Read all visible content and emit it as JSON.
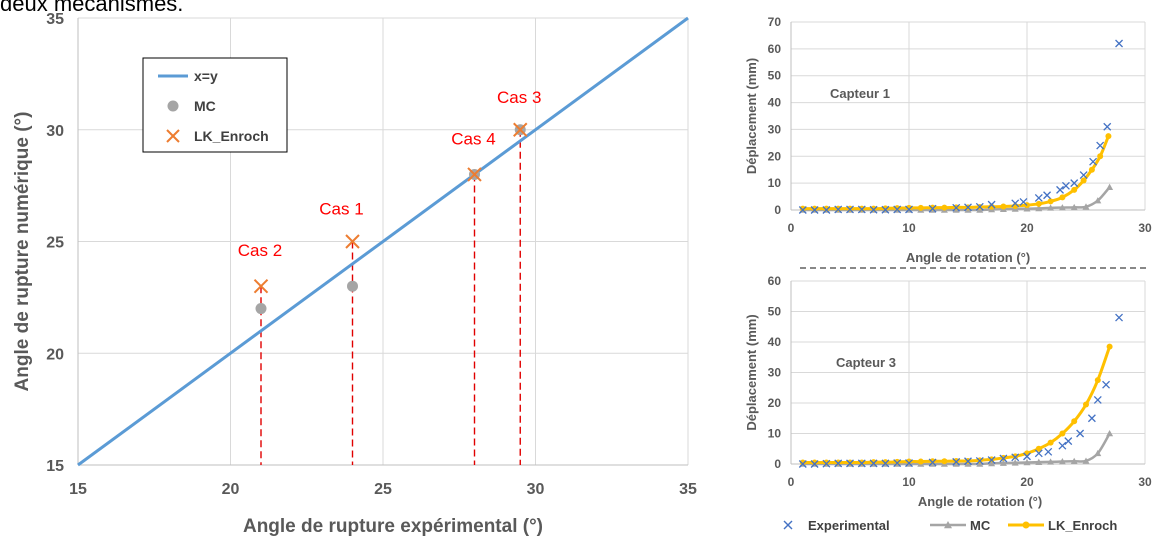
{
  "header_text": "deux mécanismes.",
  "colors": {
    "line": "#5b9bd5",
    "mc": "#a5a5a5",
    "lk": "#ed7d31",
    "guide": "#e00000",
    "experimental": "#4472c4",
    "lk_small": "#ffc000",
    "axis_text": "#595959",
    "grid": "#d9d9d9"
  },
  "chart_data": [
    {
      "type": "scatter",
      "title": "",
      "xlabel": "Angle de rupture expérimental (°)",
      "ylabel": "Angle de rupture numérique (°)",
      "xlim": [
        15,
        35
      ],
      "ylim": [
        15,
        35
      ],
      "xticks": [
        15,
        20,
        25,
        30,
        35
      ],
      "yticks": [
        15,
        20,
        25,
        30,
        35
      ],
      "grid": true,
      "legend_position": "top-left",
      "series": [
        {
          "name": "x=y",
          "kind": "line",
          "x": [
            15,
            35
          ],
          "y": [
            15,
            35
          ]
        },
        {
          "name": "MC",
          "kind": "marker-circle",
          "x": [
            21,
            24,
            28,
            29.5
          ],
          "y": [
            22,
            23,
            28,
            30
          ]
        },
        {
          "name": "LK_Enroch",
          "kind": "marker-x",
          "x": [
            21,
            24,
            28,
            29.5
          ],
          "y": [
            23,
            25,
            28,
            30
          ]
        }
      ],
      "annotations": [
        {
          "text": "Cas 2",
          "x": 21,
          "y": 23
        },
        {
          "text": "Cas 1",
          "x": 24,
          "y": 25
        },
        {
          "text": "Cas 4",
          "x": 28,
          "y": 28
        },
        {
          "text": "Cas 3",
          "x": 29.5,
          "y": 30
        }
      ],
      "guides": [
        {
          "x": 21,
          "y": 23
        },
        {
          "x": 24,
          "y": 25
        },
        {
          "x": 28,
          "y": 28
        },
        {
          "x": 29.5,
          "y": 30
        }
      ]
    },
    {
      "type": "line",
      "title": "",
      "annotation": "Capteur 1",
      "xlabel": "Angle de rotation (°)",
      "ylabel": "Déplacement (mm)",
      "xlim": [
        0,
        30
      ],
      "ylim": [
        0,
        70
      ],
      "xticks": [
        0,
        10,
        20,
        30
      ],
      "yticks": [
        0,
        10,
        20,
        30,
        40,
        50,
        60,
        70
      ],
      "grid": true,
      "series": [
        {
          "name": "Experimental",
          "kind": "marker-x",
          "x": [
            1,
            2,
            3,
            4,
            5,
            6,
            7,
            8,
            9,
            10,
            12,
            14,
            15,
            16,
            17,
            19,
            19.7,
            21,
            21.7,
            22.8,
            23.3,
            24,
            24.8,
            25.6,
            26.2,
            26.8,
            27.8
          ],
          "y": [
            0,
            0,
            0,
            0.2,
            0.2,
            0.2,
            0.1,
            0.1,
            0.2,
            0.2,
            0.5,
            0.8,
            1,
            1.2,
            2,
            2.5,
            3,
            4.5,
            5.5,
            7.5,
            9,
            10,
            13,
            18,
            24,
            31,
            62
          ]
        },
        {
          "name": "MC",
          "kind": "line-triangle",
          "x": [
            1,
            2,
            3,
            4,
            5,
            6,
            7,
            8,
            9,
            10,
            11,
            12,
            13,
            14,
            15,
            16,
            17,
            18,
            19,
            20,
            21,
            22,
            23,
            24,
            25,
            26,
            27
          ],
          "y": [
            0,
            0,
            0,
            0,
            0,
            0,
            0,
            0,
            0,
            0,
            0,
            0,
            0,
            0,
            0,
            0,
            0.2,
            0.3,
            0.4,
            0.5,
            0.6,
            0.8,
            0.9,
            1,
            1.2,
            3.5,
            8.5
          ]
        },
        {
          "name": "LK_Enroch",
          "kind": "line-circle",
          "x": [
            1,
            2,
            3,
            4,
            5,
            6,
            7,
            8,
            9,
            10,
            11,
            12,
            13,
            14,
            15,
            16,
            17,
            18,
            19,
            20,
            21,
            22,
            23,
            24,
            24.8,
            25.5,
            26.2,
            26.9
          ],
          "y": [
            0.5,
            0.5,
            0.5,
            0.5,
            0.5,
            0.5,
            0.5,
            0.6,
            0.7,
            0.8,
            0.8,
            0.9,
            0.9,
            1,
            1,
            1.1,
            1.2,
            1.3,
            1.5,
            1.8,
            2.3,
            3.2,
            4.7,
            7.5,
            11,
            15,
            20,
            27.5
          ]
        }
      ]
    },
    {
      "type": "line",
      "title": "",
      "annotation": "Capteur 3",
      "xlabel": "Angle de rotation (°)",
      "ylabel": "Déplacement (mm)",
      "xlim": [
        0,
        30
      ],
      "ylim": [
        0,
        60
      ],
      "xticks": [
        0,
        10,
        20,
        30
      ],
      "yticks": [
        0,
        10,
        20,
        30,
        40,
        50,
        60
      ],
      "grid": true,
      "legend_position": "bottom",
      "series": [
        {
          "name": "Experimental",
          "kind": "marker-x",
          "x": [
            1,
            2,
            3,
            4,
            5,
            6,
            7,
            8,
            9,
            10,
            12,
            14,
            15,
            16,
            17,
            18,
            19,
            20,
            21,
            21.8,
            23,
            23.5,
            24.5,
            25.5,
            26,
            26.7,
            27.8
          ],
          "y": [
            0,
            0,
            0.1,
            0.2,
            0.2,
            0.2,
            0.2,
            0.2,
            0.3,
            0.3,
            0.5,
            0.7,
            0.9,
            1,
            1.3,
            1.8,
            2.2,
            2.5,
            3.5,
            4,
            6,
            7.5,
            10,
            15,
            21,
            26,
            48
          ]
        },
        {
          "name": "MC",
          "kind": "line-triangle",
          "x": [
            1,
            2,
            3,
            4,
            5,
            6,
            7,
            8,
            9,
            10,
            11,
            12,
            13,
            14,
            15,
            16,
            17,
            18,
            19,
            20,
            21,
            22,
            23,
            24,
            25,
            26,
            27
          ],
          "y": [
            0,
            0,
            0,
            0,
            0,
            0,
            0,
            0,
            0,
            0,
            0,
            0,
            0,
            0,
            0,
            0,
            0.2,
            0.3,
            0.4,
            0.5,
            0.6,
            0.7,
            0.8,
            0.9,
            1,
            3.5,
            10
          ]
        },
        {
          "name": "LK_Enroch",
          "kind": "line-circle",
          "x": [
            1,
            2,
            3,
            4,
            5,
            6,
            7,
            8,
            9,
            10,
            11,
            12,
            13,
            14,
            15,
            16,
            17,
            18,
            19,
            20,
            21,
            22,
            23,
            24,
            25,
            26,
            27
          ],
          "y": [
            0.5,
            0.5,
            0.5,
            0.5,
            0.5,
            0.5,
            0.6,
            0.6,
            0.7,
            0.8,
            0.8,
            0.9,
            0.9,
            1,
            1,
            1.2,
            1.5,
            2,
            2.5,
            3.5,
            5,
            7,
            10,
            14,
            19.5,
            27.5,
            38.5
          ]
        }
      ]
    }
  ]
}
